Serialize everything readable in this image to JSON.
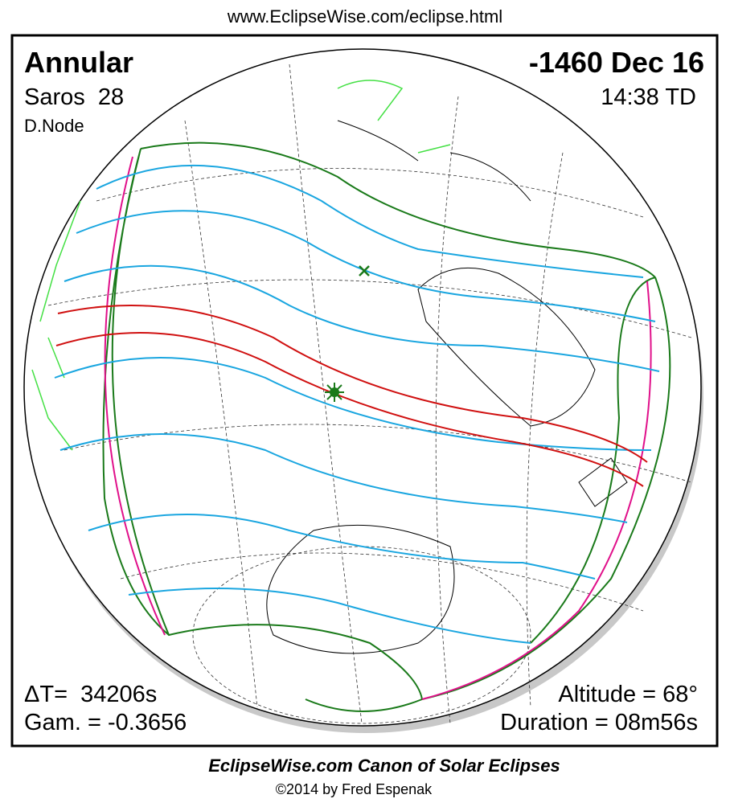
{
  "header": {
    "url": "www.EclipseWise.com/eclipse.html"
  },
  "panel": {
    "eclipse_type": "Annular",
    "saros": "Saros  28",
    "node": "D.Node",
    "date": "-1460 Dec 16",
    "time": "14:38 TD",
    "delta_t": "ΔT=  34206s",
    "gamma": "Gam. = -0.3656",
    "altitude": "Altitude = 68°",
    "duration": "Duration = 08m56s"
  },
  "footer": {
    "title": "EclipseWise.com Canon of Solar Eclipses",
    "credit": "©2014 by Fred Espenak"
  }
}
